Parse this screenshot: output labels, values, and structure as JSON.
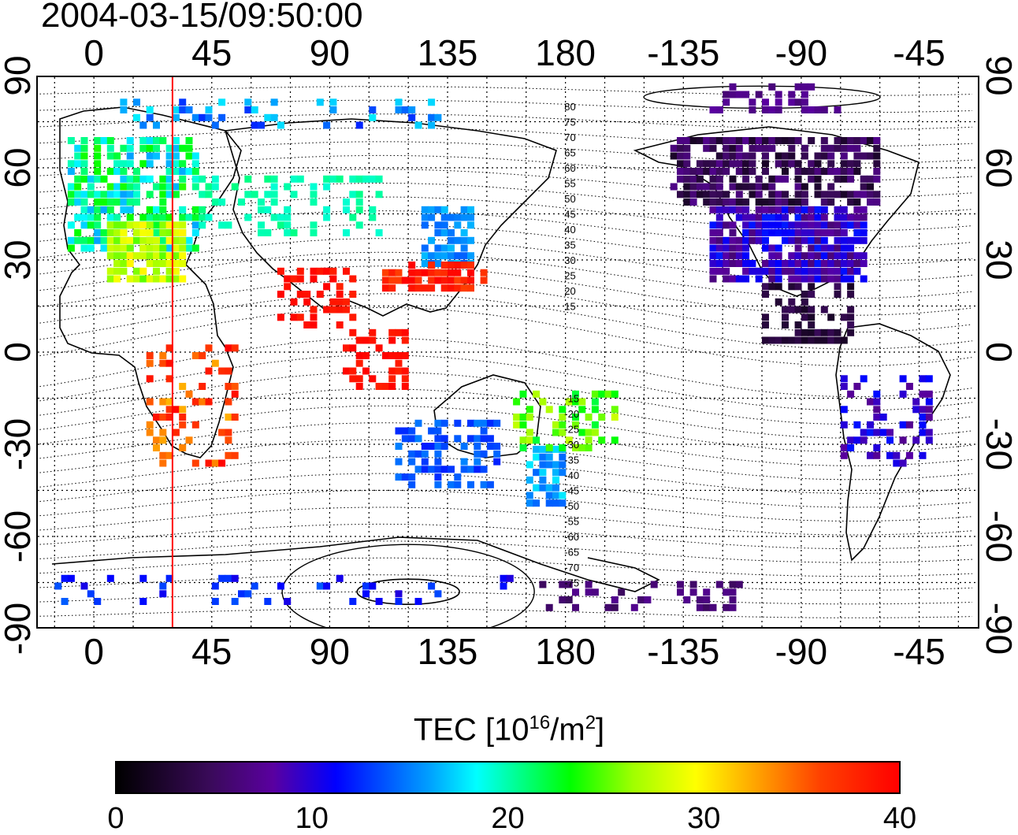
{
  "title": "2004-03-15/09:50:00",
  "x_axis": {
    "top_ticks": [
      "0",
      "45",
      "90",
      "135",
      "180",
      "-135",
      "-90",
      "-45"
    ],
    "bottom_ticks": [
      "0",
      "45",
      "90",
      "135",
      "180",
      "-135",
      "-90",
      "-45"
    ]
  },
  "y_axis": {
    "left_ticks": [
      "90",
      "60",
      "30",
      "0",
      "-30",
      "-60",
      "-90"
    ],
    "right_ticks": [
      "90",
      "60",
      "30",
      "0",
      "-30",
      "-60",
      "-90"
    ]
  },
  "contour_labels": [
    "80",
    "75",
    "70",
    "65",
    "60",
    "55",
    "50",
    "45",
    "40",
    "35",
    "30",
    "25",
    "20",
    "15",
    "-15",
    "-20",
    "-25",
    "-30",
    "-35",
    "-40",
    "-45",
    "-50",
    "-55",
    "-60",
    "-65",
    "-70",
    "-75"
  ],
  "colorbar": {
    "title_main": "TEC  [10",
    "title_exp1": "16",
    "title_mid": "/m",
    "title_exp2": "2",
    "title_end": "]",
    "ticks": [
      "0",
      "10",
      "20",
      "30",
      "40"
    ]
  },
  "map": {
    "terminator_longitude": 30,
    "terminator_color": "#ff0000"
  },
  "colors": {
    "low": "#000000",
    "mid_low": "#0000ff",
    "mid": "#00ffff",
    "mid_high": "#ffff00",
    "high": "#ff0000"
  }
}
